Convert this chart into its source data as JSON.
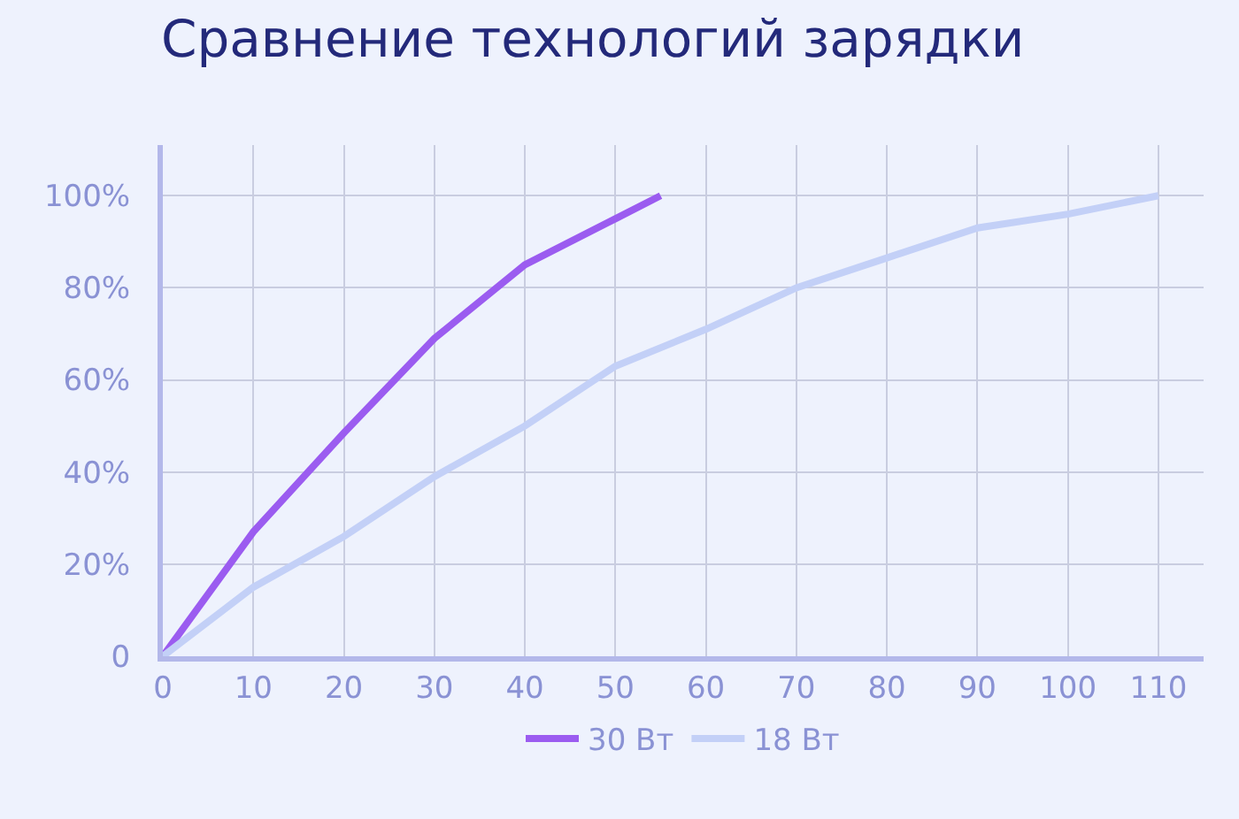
{
  "chart_data": {
    "type": "line",
    "title": "Сравнение технологий зарядки",
    "xlim": [
      0,
      115
    ],
    "xticks": [
      0,
      10,
      20,
      30,
      40,
      50,
      60,
      70,
      80,
      90,
      100,
      110
    ],
    "ylim": [
      0,
      111
    ],
    "yticks": [
      0,
      {
        "value": 20,
        "label": "20%"
      },
      {
        "value": 40,
        "label": "40%"
      },
      {
        "value": 60,
        "label": "60%"
      },
      {
        "value": 80,
        "label": "80%"
      },
      {
        "value": 100,
        "label": "100%"
      }
    ],
    "grid": true,
    "legend": "bottom",
    "marker": "none",
    "line_style": "solid",
    "series": [
      {
        "name": "30 Вт",
        "color": "#9b5cf0",
        "x": [
          0,
          10,
          20,
          30,
          40,
          50,
          55
        ],
        "values": [
          0,
          27,
          48.5,
          69,
          85,
          95,
          100
        ]
      },
      {
        "name": "18 Вт",
        "color": "#c3d0f7",
        "x": [
          0,
          10,
          20,
          30,
          40,
          50,
          60,
          70,
          80,
          90,
          100,
          110
        ],
        "values": [
          0,
          15,
          26,
          39,
          50,
          63,
          71,
          80,
          86.5,
          93,
          96,
          100
        ]
      }
    ]
  }
}
